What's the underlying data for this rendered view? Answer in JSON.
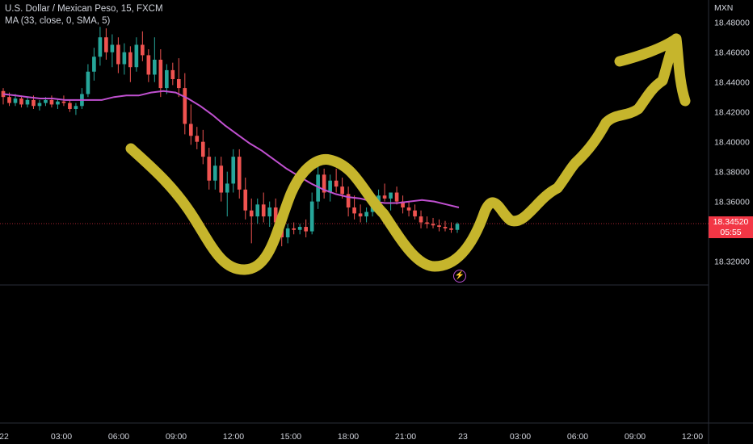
{
  "legend": {
    "symbol_line": "U.S. Dollar / Mexican Peso, 15, FXCM",
    "indicator_line": "MA (33, close, 0, SMA, 5)"
  },
  "price_tag": {
    "price": "18.34520",
    "countdown": "05:55"
  },
  "colors": {
    "up": "#26a69a",
    "down": "#ef5350",
    "ma": "#c050d0",
    "drawing": "#c6b52c",
    "price_line": "#f23645",
    "grid": "#2a2e39"
  },
  "chart_data": {
    "type": "candlestick",
    "title": "U.S. Dollar / Mexican Peso, 15, FXCM",
    "currency": "MXN",
    "y_ticks": [
      "18.48000",
      "18.46000",
      "18.44000",
      "18.42000",
      "18.40000",
      "18.38000",
      "18.36000",
      "18.34000",
      "18.32000"
    ],
    "x_ticks": [
      "22",
      "03:00",
      "06:00",
      "09:00",
      "12:00",
      "15:00",
      "18:00",
      "21:00",
      "23",
      "03:00",
      "06:00",
      "09:00",
      "12:00"
    ],
    "ylim": [
      18.303,
      18.495
    ],
    "last_price": 18.3452,
    "indicator": {
      "name": "MA (33, close, 0, SMA, 5)"
    },
    "candles_ohlc": [
      [
        18.434,
        18.436,
        18.425,
        18.43
      ],
      [
        18.43,
        18.433,
        18.424,
        18.426
      ],
      [
        18.426,
        18.432,
        18.424,
        18.429
      ],
      [
        18.429,
        18.431,
        18.423,
        18.425
      ],
      [
        18.425,
        18.43,
        18.423,
        18.428
      ],
      [
        18.428,
        18.431,
        18.422,
        18.424
      ],
      [
        18.424,
        18.428,
        18.421,
        18.426
      ],
      [
        18.426,
        18.43,
        18.424,
        18.428
      ],
      [
        18.428,
        18.431,
        18.423,
        18.425
      ],
      [
        18.425,
        18.429,
        18.422,
        18.427
      ],
      [
        18.427,
        18.431,
        18.424,
        18.426
      ],
      [
        18.426,
        18.428,
        18.42,
        18.422
      ],
      [
        18.422,
        18.426,
        18.418,
        18.424
      ],
      [
        18.424,
        18.436,
        18.422,
        18.432
      ],
      [
        18.432,
        18.452,
        18.43,
        18.447
      ],
      [
        18.447,
        18.463,
        18.441,
        18.457
      ],
      [
        18.457,
        18.477,
        18.451,
        18.47
      ],
      [
        18.47,
        18.476,
        18.455,
        18.46
      ],
      [
        18.46,
        18.472,
        18.45,
        18.465
      ],
      [
        18.465,
        18.47,
        18.446,
        18.452
      ],
      [
        18.452,
        18.466,
        18.445,
        18.46
      ],
      [
        18.46,
        18.464,
        18.44,
        18.45
      ],
      [
        18.45,
        18.47,
        18.447,
        18.465
      ],
      [
        18.465,
        18.474,
        18.454,
        18.458
      ],
      [
        18.458,
        18.462,
        18.44,
        18.445
      ],
      [
        18.445,
        18.47,
        18.44,
        18.455
      ],
      [
        18.455,
        18.462,
        18.43,
        18.436
      ],
      [
        18.436,
        18.452,
        18.432,
        18.448
      ],
      [
        18.448,
        18.453,
        18.438,
        18.442
      ],
      [
        18.442,
        18.456,
        18.43,
        18.436
      ],
      [
        18.436,
        18.446,
        18.405,
        18.412
      ],
      [
        18.412,
        18.425,
        18.398,
        18.404
      ],
      [
        18.404,
        18.41,
        18.395,
        18.4
      ],
      [
        18.4,
        18.408,
        18.385,
        18.39
      ],
      [
        18.39,
        18.396,
        18.368,
        18.374
      ],
      [
        18.374,
        18.39,
        18.368,
        18.384
      ],
      [
        18.384,
        18.39,
        18.36,
        18.366
      ],
      [
        18.366,
        18.38,
        18.35,
        18.372
      ],
      [
        18.372,
        18.395,
        18.366,
        18.39
      ],
      [
        18.39,
        18.395,
        18.362,
        18.368
      ],
      [
        18.368,
        18.376,
        18.348,
        18.354
      ],
      [
        18.354,
        18.362,
        18.332,
        18.35
      ],
      [
        18.35,
        18.362,
        18.345,
        18.358
      ],
      [
        18.358,
        18.366,
        18.346,
        18.35
      ],
      [
        18.35,
        18.36,
        18.343,
        18.356
      ],
      [
        18.356,
        18.362,
        18.34,
        18.346
      ],
      [
        18.346,
        18.352,
        18.33,
        18.336
      ],
      [
        18.336,
        18.345,
        18.332,
        18.342
      ],
      [
        18.342,
        18.346,
        18.338,
        18.341
      ],
      [
        18.341,
        18.345,
        18.338,
        18.343
      ],
      [
        18.343,
        18.348,
        18.336,
        18.34
      ],
      [
        18.34,
        18.366,
        18.338,
        18.36
      ],
      [
        18.36,
        18.384,
        18.355,
        18.378
      ],
      [
        18.378,
        18.382,
        18.362,
        18.366
      ],
      [
        18.366,
        18.378,
        18.36,
        18.374
      ],
      [
        18.374,
        18.382,
        18.366,
        18.37
      ],
      [
        18.37,
        18.376,
        18.362,
        18.365
      ],
      [
        18.365,
        18.37,
        18.35,
        18.356
      ],
      [
        18.356,
        18.364,
        18.348,
        18.352
      ],
      [
        18.352,
        18.358,
        18.346,
        18.35
      ],
      [
        18.35,
        18.356,
        18.346,
        18.353
      ],
      [
        18.353,
        18.362,
        18.35,
        18.36
      ],
      [
        18.36,
        18.368,
        18.356,
        18.364
      ],
      [
        18.364,
        18.372,
        18.36,
        18.362
      ],
      [
        18.362,
        18.366,
        18.354,
        18.366
      ],
      [
        18.366,
        18.37,
        18.358,
        18.36
      ],
      [
        18.36,
        18.364,
        18.352,
        18.356
      ],
      [
        18.356,
        18.36,
        18.35,
        18.354
      ],
      [
        18.354,
        18.358,
        18.348,
        18.35
      ],
      [
        18.35,
        18.354,
        18.342,
        18.346
      ],
      [
        18.346,
        18.35,
        18.342,
        18.345
      ],
      [
        18.345,
        18.349,
        18.342,
        18.344
      ],
      [
        18.344,
        18.348,
        18.34,
        18.343
      ],
      [
        18.343,
        18.347,
        18.34,
        18.342
      ],
      [
        18.342,
        18.346,
        18.339,
        18.341
      ],
      [
        18.341,
        18.346,
        18.339,
        18.345
      ]
    ],
    "ma_values": [
      18.432,
      18.431,
      18.43,
      18.429,
      18.429,
      18.428,
      18.428,
      18.428,
      18.428,
      18.43,
      18.431,
      18.431,
      18.433,
      18.434,
      18.433,
      18.429,
      18.424,
      18.418,
      18.411,
      18.405,
      18.399,
      18.394,
      18.388,
      18.382,
      18.377,
      18.372,
      18.368,
      18.365,
      18.363,
      18.362,
      18.36,
      18.359,
      18.359,
      18.36,
      18.361,
      18.36,
      18.358,
      18.356
    ]
  }
}
